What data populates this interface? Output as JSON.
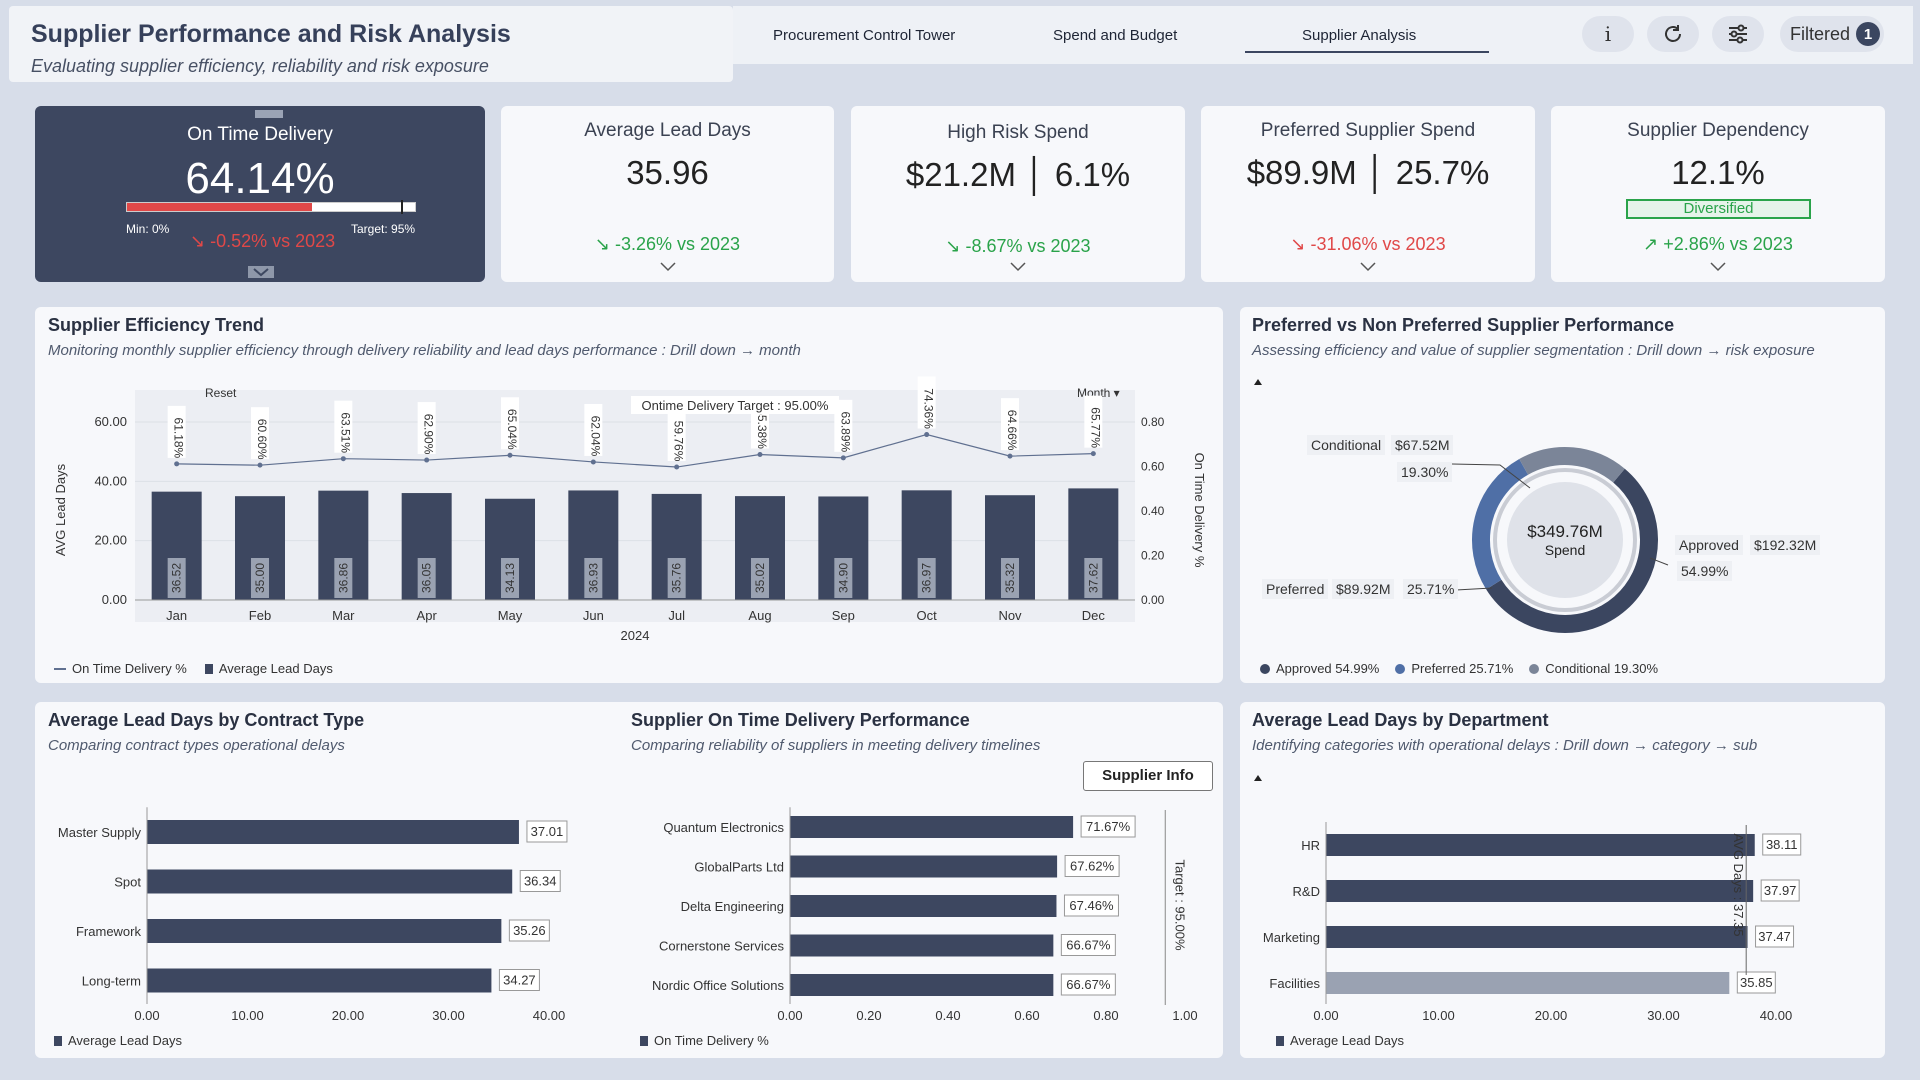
{
  "header": {
    "title": "Supplier Performance and Risk Analysis",
    "subtitle": "Evaluating supplier efficiency, reliability and risk exposure"
  },
  "tabs": [
    {
      "label": "Procurement Control Tower"
    },
    {
      "label": "Spend and Budget"
    },
    {
      "label": "Supplier Analysis"
    }
  ],
  "toolbar": {
    "info_label": "i",
    "filtered_label": "Filtered",
    "filtered_count": "1"
  },
  "kpis": {
    "otd": {
      "label": "On Time Delivery",
      "value": "64.14%",
      "min": "Min: 0%",
      "target": "Target: 95%",
      "delta": "↘ -0.52% vs 2023",
      "progress": 0.6414,
      "target_fraction": 0.95
    },
    "lead": {
      "label": "Average Lead Days",
      "value": "35.96",
      "delta": "↘ -3.26% vs 2023"
    },
    "risk": {
      "label": "High Risk Spend",
      "value": "$21.2M │ 6.1%",
      "delta": "↘ -8.67% vs 2023"
    },
    "pref": {
      "label": "Preferred Supplier Spend",
      "value": "$89.9M │ 25.7%",
      "delta": "↘ -31.06% vs 2023"
    },
    "dep": {
      "label": "Supplier Dependency",
      "value": "12.1%",
      "tag": "Diversified",
      "delta": "↗ +2.86% vs 2023"
    }
  },
  "trend": {
    "title": "Supplier Efficiency Trend",
    "subtitle": "Monitoring monthly supplier efficiency through delivery reliability and lead days performance : Drill down → month",
    "reset_label": "Reset",
    "month_label": "Month ▾",
    "target_label": "Ontime Delivery Target : 95.00%",
    "year_label": "2024",
    "ylabel_left": "AVG Lead Days",
    "ylabel_right": "On Time Delivery %",
    "legend_line": "On Time Delivery %",
    "legend_bar": "Average Lead Days"
  },
  "donut": {
    "title": "Preferred vs Non Preferred Supplier Performance",
    "subtitle": "Assessing efficiency  and value of supplier segmentation : Drill down → risk exposure",
    "center_value": "$349.76M",
    "center_label": "Spend",
    "conditional": {
      "name": "Conditional",
      "value": "$67.52M",
      "pct": "19.30%",
      "share": 19.3,
      "color": "#7b8598"
    },
    "approved": {
      "name": "Approved",
      "value": "$192.32M",
      "pct": "54.99%",
      "share": 54.99,
      "color": "#3b4660"
    },
    "preferred": {
      "name": "Preferred",
      "value": "$89.92M",
      "pct": "25.71%",
      "share": 25.71,
      "color": "#4f6fa6"
    },
    "legend": [
      "Approved 54.99%",
      "Preferred 25.71%",
      "Conditional 19.30%"
    ]
  },
  "contract": {
    "title": "Average Lead Days by Contract Type",
    "subtitle": "Comparing contract types operational delays",
    "legend": "Average Lead Days"
  },
  "supplier": {
    "title": "Supplier On Time Delivery Performance",
    "subtitle": "Comparing reliability of suppliers in meeting delivery timelines",
    "info_button": "Supplier Info",
    "target_label": "Target : 95.00%",
    "legend": "On Time Delivery %"
  },
  "dept": {
    "title": "Average Lead Days by Department",
    "subtitle": "Identifying categories with operational delays : Drill down → category → sub",
    "avg_label": "AVG Days : 37.35",
    "legend": "Average Lead Days"
  },
  "chart_data": [
    {
      "type": "bar",
      "id": "trend",
      "categories": [
        "Jan",
        "Feb",
        "Mar",
        "Apr",
        "May",
        "Jun",
        "Jul",
        "Aug",
        "Sep",
        "Oct",
        "Nov",
        "Dec"
      ],
      "series": [
        {
          "name": "Average Lead Days",
          "values": [
            36.52,
            35.0,
            36.86,
            36.05,
            34.13,
            36.93,
            35.76,
            35.02,
            34.9,
            36.97,
            35.32,
            37.62
          ],
          "labels": [
            "36.52",
            "35.00",
            "36.86",
            "36.05",
            "34.13",
            "36.93",
            "35.76",
            "35.02",
            "34.90",
            "36.97",
            "35.32",
            "37.62"
          ]
        },
        {
          "name": "On Time Delivery %",
          "type": "line",
          "values": [
            0.6118,
            0.606,
            0.6351,
            0.629,
            0.6504,
            0.6204,
            0.5976,
            0.6538,
            0.6389,
            0.7436,
            0.6466,
            0.6577
          ],
          "labels": [
            "61.18%",
            "60.60%",
            "63.51%",
            "62.90%",
            "65.04%",
            "62.04%",
            "59.76%",
            "65.38%",
            "63.89%",
            "74.36%",
            "64.66%",
            "65.77%"
          ]
        }
      ],
      "ylim": [
        0,
        60
      ],
      "y2lim": [
        0,
        0.8
      ],
      "yticks": [
        "0.00",
        "20.00",
        "40.00",
        "60.00"
      ],
      "y2ticks": [
        "0.00",
        "0.20",
        "0.40",
        "0.60",
        "0.80"
      ]
    },
    {
      "type": "bar",
      "id": "contract",
      "orientation": "horizontal",
      "categories": [
        "Master Supply",
        "Spot",
        "Framework",
        "Long-term"
      ],
      "values": [
        37.01,
        36.34,
        35.26,
        34.27
      ],
      "labels": [
        "37.01",
        "36.34",
        "35.26",
        "34.27"
      ],
      "xlim": [
        0,
        40
      ],
      "xticks": [
        "0.00",
        "10.00",
        "20.00",
        "30.00",
        "40.00"
      ]
    },
    {
      "type": "bar",
      "id": "supplier",
      "orientation": "horizontal",
      "categories": [
        "Quantum Electronics",
        "GlobalParts Ltd",
        "Delta Engineering",
        "Cornerstone Services",
        "Nordic Office Solutions"
      ],
      "values": [
        0.7167,
        0.6762,
        0.6746,
        0.6667,
        0.6667
      ],
      "labels": [
        "71.67%",
        "67.62%",
        "67.46%",
        "66.67%",
        "66.67%"
      ],
      "xlim": [
        0,
        1
      ],
      "xticks": [
        "0.00",
        "0.20",
        "0.40",
        "0.60",
        "0.80",
        "1.00"
      ]
    },
    {
      "type": "bar",
      "id": "dept",
      "orientation": "horizontal",
      "categories": [
        "HR",
        "R&D",
        "Marketing",
        "Facilities"
      ],
      "values": [
        38.11,
        37.97,
        37.47,
        35.85
      ],
      "labels": [
        "38.11",
        "37.97",
        "37.47",
        "35.85"
      ],
      "xlim": [
        0,
        40
      ],
      "xticks": [
        "0.00",
        "10.00",
        "20.00",
        "30.00",
        "40.00"
      ]
    }
  ]
}
